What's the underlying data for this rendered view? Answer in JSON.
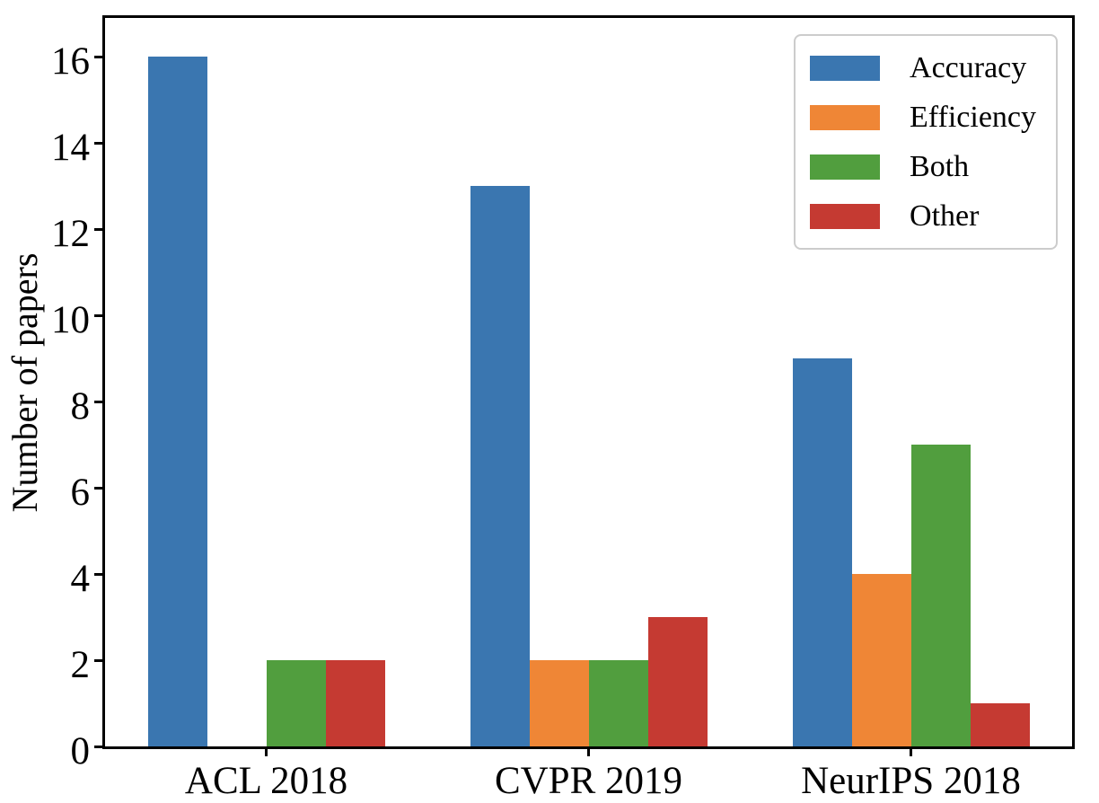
{
  "chart_data": {
    "type": "bar",
    "title": "",
    "xlabel": "",
    "ylabel": "Number of papers",
    "categories": [
      "ACL 2018",
      "CVPR 2019",
      "NeurIPS 2018"
    ],
    "series": [
      {
        "name": "Accuracy",
        "color": "#3A76B0",
        "values": [
          16,
          13,
          9
        ]
      },
      {
        "name": "Efficiency",
        "color": "#EF8636",
        "values": [
          0,
          2,
          4
        ]
      },
      {
        "name": "Both",
        "color": "#519E3E",
        "values": [
          2,
          2,
          7
        ]
      },
      {
        "name": "Other",
        "color": "#C53A32",
        "values": [
          2,
          3,
          1
        ]
      }
    ],
    "ylim": [
      0,
      16.9
    ],
    "yticks": [
      0,
      2,
      4,
      6,
      8,
      10,
      12,
      14,
      16
    ],
    "grid": false,
    "legend_position": "upper right",
    "axis_color": "#000000",
    "legend_border_color": "#cccccc"
  }
}
